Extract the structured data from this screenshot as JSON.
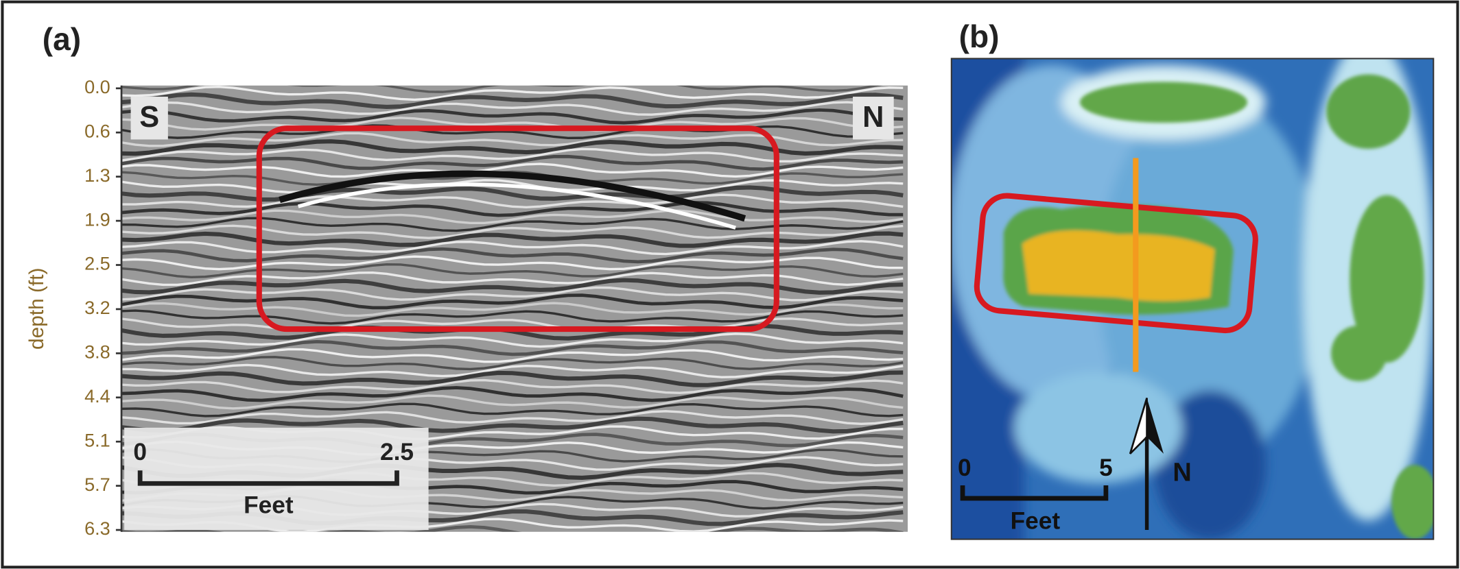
{
  "panel_a": {
    "label": "(a)",
    "axis_label": "depth (ft)",
    "depth_ticks": [
      "0.0",
      "0.6",
      "1.3",
      "1.9",
      "2.5",
      "3.2",
      "3.8",
      "4.4",
      "5.1",
      "5.7",
      "6.3"
    ],
    "left_direction": "S",
    "right_direction": "N",
    "scale_bar": {
      "start": "0",
      "end": "2.5",
      "unit": "Feet"
    }
  },
  "panel_b": {
    "label": "(b)",
    "north": "N",
    "scale_bar": {
      "start": "0",
      "end": "5",
      "unit": "Feet"
    }
  }
}
